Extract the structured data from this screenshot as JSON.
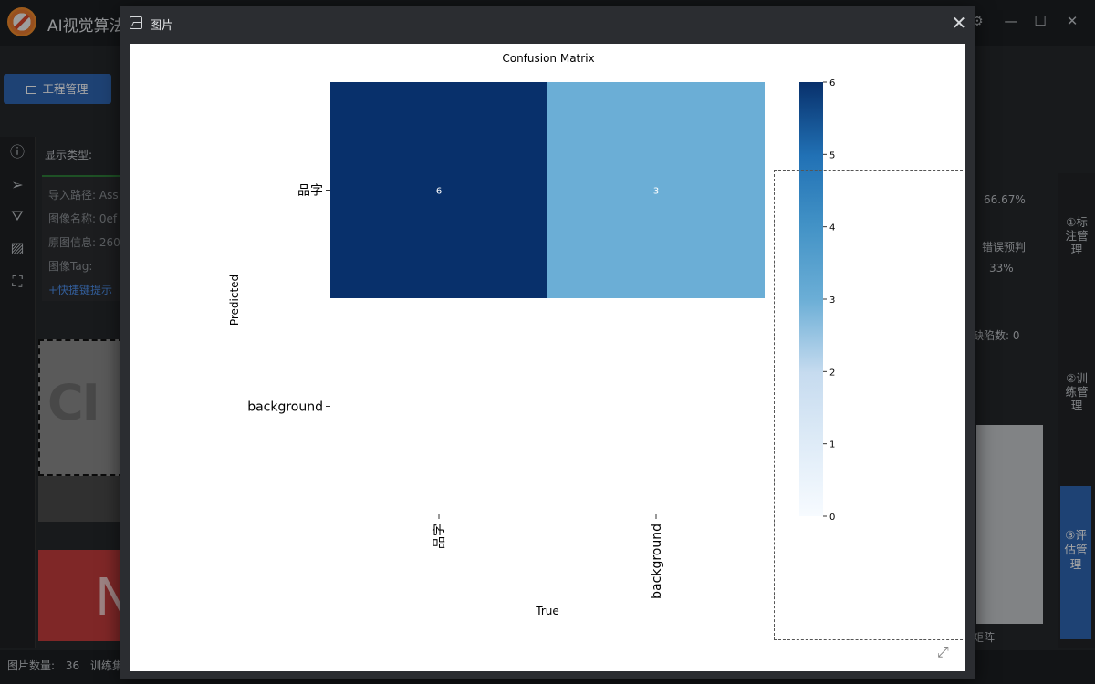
{
  "app": {
    "title": "AI视觉算法",
    "tab_project": "工程管理",
    "display_type_label": "显示类型:",
    "info": {
      "import_path": "导入路径: Ass",
      "image_name": "图像名称: 0ef",
      "origin_info": "原图信息: 260",
      "image_tag": "图像Tag:",
      "shortcut_hint": "+快捷键提示"
    },
    "thumb1_letters": "CI",
    "thumb2_letter": "N",
    "right_panel": {
      "percent": "66.67%",
      "wrong_label": "错误预判",
      "wrong_pct": "33%",
      "defects": "缺陷数: 0",
      "footer_text": "矩阵"
    },
    "right_tabs": {
      "annotation": "①标注管理",
      "training": "②训练管理",
      "evaluation": "③评估管理"
    },
    "status": {
      "count_label": "图片数量:",
      "count": "36",
      "train_label": "训练集"
    }
  },
  "modal": {
    "title": "图片",
    "close_icon": "close-icon",
    "expand_icon": "expand-icon"
  },
  "chart_data": {
    "type": "heatmap",
    "title": "Confusion Matrix",
    "xlabel": "True",
    "ylabel": "Predicted",
    "x_categories": [
      "品字",
      "background"
    ],
    "y_categories": [
      "品字",
      "background"
    ],
    "values": [
      [
        6,
        3
      ],
      [
        0,
        0
      ]
    ],
    "annotations": [
      [
        "6",
        "3"
      ],
      [
        "",
        ""
      ]
    ],
    "colorbar": {
      "min": 0,
      "max": 6,
      "ticks": [
        0,
        1,
        2,
        3,
        4,
        5,
        6
      ],
      "colormap": "Blues",
      "low_color": "#f7fbff",
      "high_color": "#08306b"
    },
    "grid": false
  }
}
